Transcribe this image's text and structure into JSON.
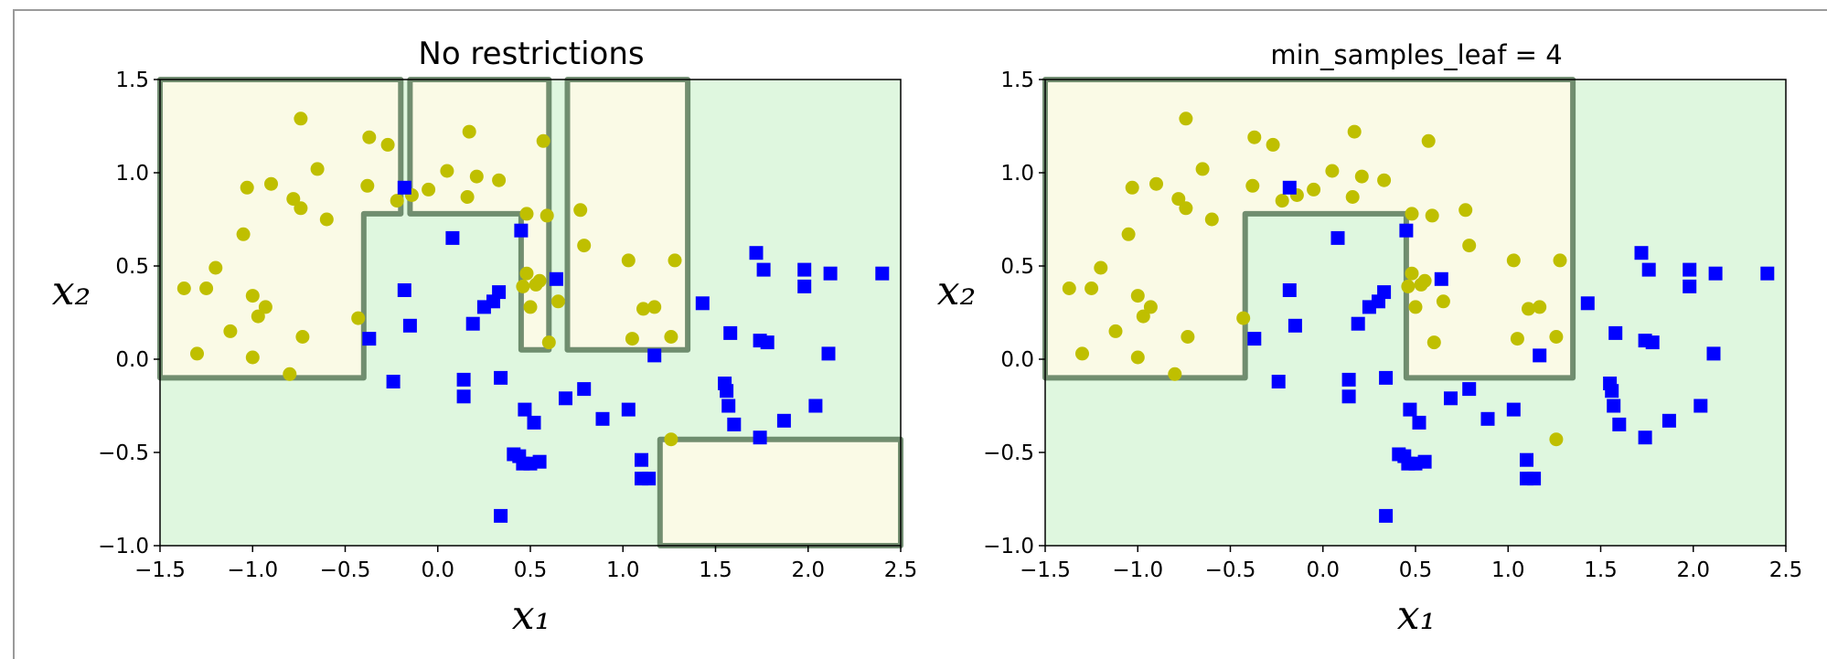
{
  "chart_data": [
    {
      "type": "scatter",
      "title": "No restrictions",
      "xlabel": "x₁",
      "ylabel": "x₂",
      "xlim": [
        -1.5,
        2.5
      ],
      "ylim": [
        -1.0,
        1.5
      ],
      "xticks": [
        "−1.5",
        "−1.0",
        "−0.5",
        "0.0",
        "0.5",
        "1.0",
        "1.5",
        "2.0",
        "2.5"
      ],
      "yticks": [
        "−1.0",
        "−0.5",
        "0.0",
        "0.5",
        "1.0",
        "1.5"
      ],
      "background_colors": {
        "class_0": "#fafae6",
        "class_1": "#dff7df",
        "boundary": "#5a7a5a"
      },
      "class_0_regions": [
        [
          [
            -1.5,
            -0.1
          ],
          [
            -0.4,
            -0.1
          ],
          [
            -0.4,
            0.78
          ],
          [
            -0.2,
            0.78
          ],
          [
            -0.2,
            1.5
          ],
          [
            -1.5,
            1.5
          ]
        ],
        [
          [
            -0.15,
            0.78
          ],
          [
            0.45,
            0.78
          ],
          [
            0.45,
            0.05
          ],
          [
            0.6,
            0.05
          ],
          [
            0.6,
            1.5
          ],
          [
            -0.15,
            1.5
          ]
        ],
        [
          [
            0.7,
            0.05
          ],
          [
            1.35,
            0.05
          ],
          [
            1.35,
            1.5
          ],
          [
            0.7,
            1.5
          ]
        ],
        [
          [
            1.2,
            -1.0
          ],
          [
            2.5,
            -1.0
          ],
          [
            2.5,
            -0.43
          ],
          [
            1.2,
            -0.43
          ]
        ]
      ],
      "series": [
        {
          "marker": "circle",
          "color": "#bfbf00",
          "points": [
            [
              -1.37,
              0.38
            ],
            [
              -1.3,
              0.03
            ],
            [
              -1.25,
              0.38
            ],
            [
              -1.2,
              0.49
            ],
            [
              -1.12,
              0.15
            ],
            [
              -1.05,
              0.67
            ],
            [
              -1.03,
              0.92
            ],
            [
              -1.0,
              0.34
            ],
            [
              -1.0,
              0.01
            ],
            [
              -0.97,
              0.23
            ],
            [
              -0.93,
              0.28
            ],
            [
              -0.9,
              0.94
            ],
            [
              -0.8,
              -0.08
            ],
            [
              -0.78,
              0.86
            ],
            [
              -0.74,
              0.81
            ],
            [
              -0.74,
              1.29
            ],
            [
              -0.73,
              0.12
            ],
            [
              -0.65,
              1.02
            ],
            [
              -0.6,
              0.75
            ],
            [
              -0.43,
              0.22
            ],
            [
              -0.37,
              1.19
            ],
            [
              -0.38,
              0.93
            ],
            [
              -0.27,
              1.15
            ],
            [
              -0.22,
              0.85
            ],
            [
              -0.14,
              0.88
            ],
            [
              -0.05,
              0.91
            ],
            [
              0.05,
              1.01
            ],
            [
              0.17,
              1.22
            ],
            [
              0.16,
              0.87
            ],
            [
              0.21,
              0.98
            ],
            [
              0.33,
              0.96
            ],
            [
              0.46,
              0.39
            ],
            [
              0.48,
              0.78
            ],
            [
              0.48,
              0.46
            ],
            [
              0.5,
              0.28
            ],
            [
              0.53,
              0.4
            ],
            [
              0.55,
              0.42
            ],
            [
              0.57,
              1.17
            ],
            [
              0.59,
              0.77
            ],
            [
              0.6,
              0.09
            ],
            [
              0.65,
              0.31
            ],
            [
              0.77,
              0.8
            ],
            [
              0.79,
              0.61
            ],
            [
              1.03,
              0.53
            ],
            [
              1.05,
              0.11
            ],
            [
              1.11,
              0.27
            ],
            [
              1.17,
              0.28
            ],
            [
              1.26,
              0.12
            ],
            [
              1.28,
              0.53
            ],
            [
              1.26,
              -0.43
            ]
          ]
        },
        {
          "marker": "square",
          "color": "#0000ff",
          "points": [
            [
              -0.37,
              0.11
            ],
            [
              -0.24,
              -0.12
            ],
            [
              -0.18,
              0.92
            ],
            [
              -0.18,
              0.37
            ],
            [
              -0.15,
              0.18
            ],
            [
              0.08,
              0.65
            ],
            [
              0.14,
              -0.11
            ],
            [
              0.14,
              -0.2
            ],
            [
              0.19,
              0.19
            ],
            [
              0.25,
              0.28
            ],
            [
              0.3,
              0.31
            ],
            [
              0.33,
              0.36
            ],
            [
              0.34,
              -0.1
            ],
            [
              0.34,
              -0.84
            ],
            [
              0.41,
              -0.51
            ],
            [
              0.44,
              -0.52
            ],
            [
              0.45,
              0.69
            ],
            [
              0.46,
              -0.56
            ],
            [
              0.47,
              -0.27
            ],
            [
              0.5,
              -0.56
            ],
            [
              0.52,
              -0.34
            ],
            [
              0.55,
              -0.55
            ],
            [
              0.64,
              0.43
            ],
            [
              0.69,
              -0.21
            ],
            [
              0.79,
              -0.16
            ],
            [
              0.89,
              -0.32
            ],
            [
              1.03,
              -0.27
            ],
            [
              1.1,
              -0.54
            ],
            [
              1.1,
              -0.64
            ],
            [
              1.14,
              -0.64
            ],
            [
              1.17,
              0.02
            ],
            [
              1.43,
              0.3
            ],
            [
              1.55,
              -0.13
            ],
            [
              1.56,
              -0.17
            ],
            [
              1.57,
              -0.25
            ],
            [
              1.58,
              0.14
            ],
            [
              1.6,
              -0.35
            ],
            [
              1.72,
              0.57
            ],
            [
              1.74,
              -0.42
            ],
            [
              1.74,
              0.1
            ],
            [
              1.76,
              0.48
            ],
            [
              1.78,
              0.09
            ],
            [
              1.87,
              -0.33
            ],
            [
              1.98,
              0.48
            ],
            [
              1.98,
              0.39
            ],
            [
              2.04,
              -0.25
            ],
            [
              2.11,
              0.03
            ],
            [
              2.12,
              0.46
            ],
            [
              2.4,
              0.46
            ]
          ]
        }
      ]
    },
    {
      "type": "scatter",
      "title": "min_samples_leaf = 4",
      "xlabel": "x₁",
      "ylabel": "x₂",
      "xlim": [
        -1.5,
        2.5
      ],
      "ylim": [
        -1.0,
        1.5
      ],
      "xticks": [
        "−1.5",
        "−1.0",
        "−0.5",
        "0.0",
        "0.5",
        "1.0",
        "1.5",
        "2.0",
        "2.5"
      ],
      "yticks": [
        "−1.0",
        "−0.5",
        "0.0",
        "0.5",
        "1.0",
        "1.5"
      ],
      "background_colors": {
        "class_0": "#fafae6",
        "class_1": "#dff7df",
        "boundary": "#5a7a5a"
      },
      "class_0_regions": [
        [
          [
            -1.5,
            -0.1
          ],
          [
            -0.42,
            -0.1
          ],
          [
            -0.42,
            0.78
          ],
          [
            0.45,
            0.78
          ],
          [
            0.45,
            -0.1
          ],
          [
            1.35,
            -0.1
          ],
          [
            1.35,
            1.5
          ],
          [
            -1.5,
            1.5
          ]
        ]
      ],
      "series": [
        {
          "marker": "circle",
          "color": "#bfbf00",
          "points": [
            [
              -1.37,
              0.38
            ],
            [
              -1.3,
              0.03
            ],
            [
              -1.25,
              0.38
            ],
            [
              -1.2,
              0.49
            ],
            [
              -1.12,
              0.15
            ],
            [
              -1.05,
              0.67
            ],
            [
              -1.03,
              0.92
            ],
            [
              -1.0,
              0.34
            ],
            [
              -1.0,
              0.01
            ],
            [
              -0.97,
              0.23
            ],
            [
              -0.93,
              0.28
            ],
            [
              -0.9,
              0.94
            ],
            [
              -0.8,
              -0.08
            ],
            [
              -0.78,
              0.86
            ],
            [
              -0.74,
              0.81
            ],
            [
              -0.74,
              1.29
            ],
            [
              -0.73,
              0.12
            ],
            [
              -0.65,
              1.02
            ],
            [
              -0.6,
              0.75
            ],
            [
              -0.43,
              0.22
            ],
            [
              -0.37,
              1.19
            ],
            [
              -0.38,
              0.93
            ],
            [
              -0.27,
              1.15
            ],
            [
              -0.22,
              0.85
            ],
            [
              -0.14,
              0.88
            ],
            [
              -0.05,
              0.91
            ],
            [
              0.05,
              1.01
            ],
            [
              0.17,
              1.22
            ],
            [
              0.16,
              0.87
            ],
            [
              0.21,
              0.98
            ],
            [
              0.33,
              0.96
            ],
            [
              0.46,
              0.39
            ],
            [
              0.48,
              0.78
            ],
            [
              0.48,
              0.46
            ],
            [
              0.5,
              0.28
            ],
            [
              0.53,
              0.4
            ],
            [
              0.55,
              0.42
            ],
            [
              0.57,
              1.17
            ],
            [
              0.59,
              0.77
            ],
            [
              0.6,
              0.09
            ],
            [
              0.65,
              0.31
            ],
            [
              0.77,
              0.8
            ],
            [
              0.79,
              0.61
            ],
            [
              1.03,
              0.53
            ],
            [
              1.05,
              0.11
            ],
            [
              1.11,
              0.27
            ],
            [
              1.17,
              0.28
            ],
            [
              1.26,
              0.12
            ],
            [
              1.28,
              0.53
            ],
            [
              1.26,
              -0.43
            ]
          ]
        },
        {
          "marker": "square",
          "color": "#0000ff",
          "points": [
            [
              -0.37,
              0.11
            ],
            [
              -0.24,
              -0.12
            ],
            [
              -0.18,
              0.92
            ],
            [
              -0.18,
              0.37
            ],
            [
              -0.15,
              0.18
            ],
            [
              0.08,
              0.65
            ],
            [
              0.14,
              -0.11
            ],
            [
              0.14,
              -0.2
            ],
            [
              0.19,
              0.19
            ],
            [
              0.25,
              0.28
            ],
            [
              0.3,
              0.31
            ],
            [
              0.33,
              0.36
            ],
            [
              0.34,
              -0.1
            ],
            [
              0.34,
              -0.84
            ],
            [
              0.41,
              -0.51
            ],
            [
              0.44,
              -0.52
            ],
            [
              0.45,
              0.69
            ],
            [
              0.46,
              -0.56
            ],
            [
              0.47,
              -0.27
            ],
            [
              0.5,
              -0.56
            ],
            [
              0.52,
              -0.34
            ],
            [
              0.55,
              -0.55
            ],
            [
              0.64,
              0.43
            ],
            [
              0.69,
              -0.21
            ],
            [
              0.79,
              -0.16
            ],
            [
              0.89,
              -0.32
            ],
            [
              1.03,
              -0.27
            ],
            [
              1.1,
              -0.54
            ],
            [
              1.1,
              -0.64
            ],
            [
              1.14,
              -0.64
            ],
            [
              1.17,
              0.02
            ],
            [
              1.43,
              0.3
            ],
            [
              1.55,
              -0.13
            ],
            [
              1.56,
              -0.17
            ],
            [
              1.57,
              -0.25
            ],
            [
              1.58,
              0.14
            ],
            [
              1.6,
              -0.35
            ],
            [
              1.72,
              0.57
            ],
            [
              1.74,
              -0.42
            ],
            [
              1.74,
              0.1
            ],
            [
              1.76,
              0.48
            ],
            [
              1.78,
              0.09
            ],
            [
              1.87,
              -0.33
            ],
            [
              1.98,
              0.48
            ],
            [
              1.98,
              0.39
            ],
            [
              2.04,
              -0.25
            ],
            [
              2.11,
              0.03
            ],
            [
              2.12,
              0.46
            ],
            [
              2.4,
              0.46
            ]
          ]
        }
      ]
    }
  ]
}
